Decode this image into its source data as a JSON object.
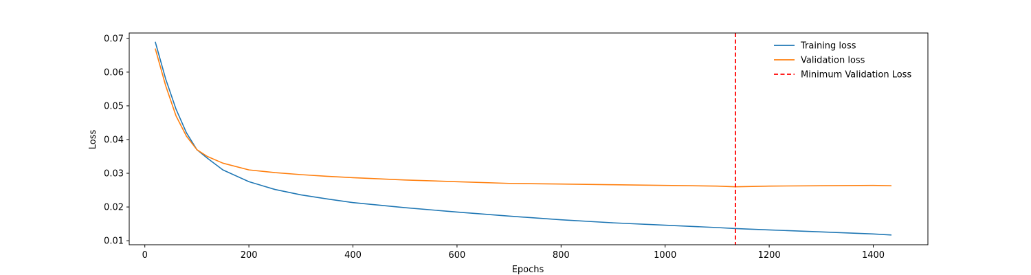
{
  "chart_data": {
    "type": "line",
    "title": "",
    "xlabel": "Epochs",
    "ylabel": "Loss",
    "xlim": [
      -30,
      1505
    ],
    "ylim": [
      0.0088,
      0.0716
    ],
    "xticks": [
      0,
      200,
      400,
      600,
      800,
      1000,
      1200,
      1400
    ],
    "yticks": [
      0.01,
      0.02,
      0.03,
      0.04,
      0.05,
      0.06,
      0.07
    ],
    "ytick_labels": [
      "0.01",
      "0.02",
      "0.03",
      "0.04",
      "0.05",
      "0.06",
      "0.07"
    ],
    "grid": false,
    "legend_position": "top-right",
    "series": [
      {
        "name": "Training loss",
        "color": "#1f77b4",
        "style": "solid",
        "x": [
          20,
          40,
          60,
          80,
          100,
          120,
          150,
          200,
          250,
          300,
          350,
          400,
          500,
          600,
          700,
          800,
          900,
          1000,
          1100,
          1135,
          1200,
          1300,
          1400,
          1435
        ],
        "y": [
          0.069,
          0.058,
          0.049,
          0.042,
          0.037,
          0.0345,
          0.031,
          0.0275,
          0.0252,
          0.0236,
          0.0224,
          0.0213,
          0.0198,
          0.0185,
          0.0173,
          0.0162,
          0.0153,
          0.0146,
          0.0139,
          0.0136,
          0.0132,
          0.0126,
          0.012,
          0.0117
        ]
      },
      {
        "name": "Validation loss",
        "color": "#ff7f0e",
        "style": "solid",
        "x": [
          20,
          40,
          60,
          80,
          100,
          120,
          150,
          200,
          250,
          300,
          350,
          400,
          500,
          600,
          700,
          800,
          900,
          1000,
          1100,
          1135,
          1200,
          1300,
          1400,
          1435
        ],
        "y": [
          0.067,
          0.056,
          0.047,
          0.041,
          0.037,
          0.035,
          0.033,
          0.031,
          0.0302,
          0.0296,
          0.0291,
          0.0287,
          0.028,
          0.0275,
          0.027,
          0.0268,
          0.0266,
          0.0264,
          0.0262,
          0.026,
          0.0262,
          0.0263,
          0.0264,
          0.0263
        ]
      }
    ],
    "reference_lines": [
      {
        "name": "Minimum Validation Loss",
        "orientation": "vertical",
        "x": 1135,
        "color": "#ff0000",
        "style": "dashed"
      }
    ]
  }
}
